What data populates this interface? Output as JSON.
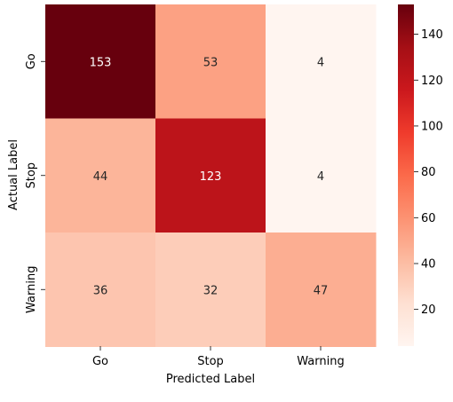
{
  "chart_data": {
    "type": "heatmap",
    "title": "",
    "xlabel": "Predicted Label",
    "ylabel": "Actual Label",
    "x_categories": [
      "Go",
      "Stop",
      "Warning"
    ],
    "y_categories": [
      "Go",
      "Stop",
      "Warning"
    ],
    "values": [
      [
        153,
        53,
        4
      ],
      [
        44,
        123,
        4
      ],
      [
        36,
        32,
        47
      ]
    ],
    "colormap": "Reds",
    "colorbar": {
      "range": [
        4,
        153
      ],
      "ticks": [
        20,
        40,
        60,
        80,
        100,
        120,
        140
      ]
    },
    "grid": false,
    "legend": "colorbar-right"
  }
}
